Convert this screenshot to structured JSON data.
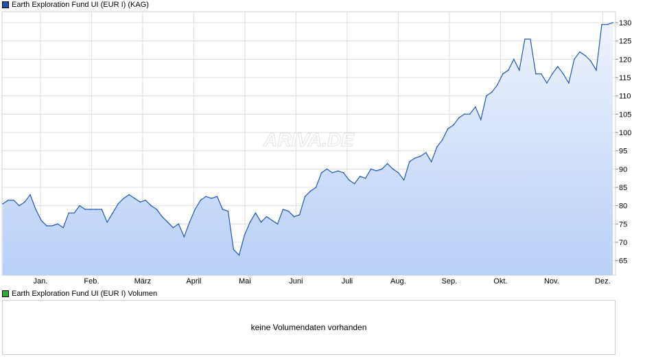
{
  "price_legend": {
    "label": "Earth Exploration Fund UI (EUR I) (KAG)",
    "color": "#1f4fa8"
  },
  "volume_legend": {
    "label": "Earth Exploration Fund UI (EUR I) Volumen",
    "color": "#2fa836"
  },
  "watermark": "ARIVA.DE",
  "volume_message": "keine Volumendaten vorhanden",
  "colors": {
    "line": "#1f56b8",
    "fill_top": "#eef3fd",
    "fill_bottom": "#b8cff7",
    "grid": "#dcdcdc"
  },
  "chart_data": {
    "type": "area",
    "title": "",
    "xlabel": "",
    "ylabel": "",
    "ylim": [
      61,
      133
    ],
    "yticks": [
      65,
      70,
      75,
      80,
      85,
      90,
      95,
      100,
      105,
      110,
      115,
      120,
      125,
      130
    ],
    "month_labels": [
      "Jan.",
      "Feb.",
      "März",
      "April",
      "Mai",
      "Juni",
      "Juli",
      "Aug.",
      "Sep.",
      "Okt.",
      "Nov.",
      "Dez."
    ],
    "series": [
      {
        "values": [
          80.5,
          81.5,
          81.5,
          80,
          81,
          83,
          79,
          76,
          74.5,
          74.5,
          75,
          74,
          78,
          78,
          80,
          79,
          79,
          79,
          79,
          75.5,
          78,
          80.5,
          82,
          83,
          82,
          81,
          81.5,
          80,
          79,
          77,
          75.5,
          74,
          75,
          71.5,
          75.5,
          79,
          81.5,
          82.5,
          82,
          82.5,
          79,
          78.5,
          68,
          66.5,
          72,
          75.5,
          78,
          75.5,
          77,
          76,
          75,
          79,
          78.5,
          77,
          77.5,
          82.5,
          84,
          85,
          89,
          90,
          89,
          89.5,
          89,
          87,
          86,
          88,
          87.5,
          90,
          89.5,
          90,
          91.5,
          90,
          89,
          87,
          92,
          93,
          93.5,
          94.5,
          92,
          96,
          98,
          101,
          102,
          104,
          105,
          105,
          107,
          103.5,
          110,
          111,
          113,
          116,
          117,
          120,
          117,
          125.5,
          125.5,
          116,
          116,
          113.5,
          116,
          118,
          116,
          113.5,
          120,
          122,
          121,
          119.5,
          117,
          129.5,
          129.5,
          130
        ]
      }
    ]
  }
}
